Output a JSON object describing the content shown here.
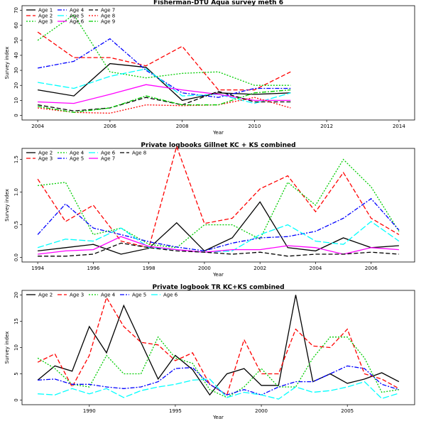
{
  "figure": {
    "background": "#ffffff"
  },
  "chart_data": [
    {
      "type": "line",
      "title": "Fisherman-DTU Aqua survey meth 6",
      "xlabel": "Year",
      "ylabel": "Survey index",
      "xlim": [
        2004,
        2014
      ],
      "ylim": [
        0,
        70
      ],
      "xticks": [
        2004,
        2006,
        2008,
        2010,
        2012,
        2014
      ],
      "yticks": [
        0,
        10,
        20,
        30,
        40,
        50,
        60,
        70
      ],
      "legend_columns": 3,
      "legend_placement": "top-left",
      "x": [
        2004,
        2005,
        2006,
        2007,
        2008,
        2009,
        2010,
        2011
      ],
      "series": [
        {
          "name": "Age 1",
          "color": "#000000",
          "dash": "solid",
          "values": [
            17,
            13,
            34.5,
            32,
            10,
            15,
            14,
            15
          ]
        },
        {
          "name": "Age 2",
          "color": "#ff0000",
          "dash": "dashed",
          "values": [
            55.5,
            38.5,
            38.5,
            33,
            46,
            17,
            17,
            29
          ]
        },
        {
          "name": "Age 3",
          "color": "#00cd00",
          "dash": "dotted",
          "values": [
            50,
            67,
            29,
            25,
            28,
            29,
            20,
            20
          ]
        },
        {
          "name": "Age 4",
          "color": "#0000ff",
          "dash": "dashdot",
          "values": [
            31.5,
            36,
            51,
            30,
            15,
            12,
            18,
            18
          ]
        },
        {
          "name": "Age 5",
          "color": "#00ffff",
          "dash": "longdash",
          "values": [
            22,
            18,
            26,
            31,
            13,
            14,
            8,
            15
          ]
        },
        {
          "name": "Age 6",
          "color": "#ff00ff",
          "dash": "solid",
          "values": [
            9,
            8,
            14,
            20.5,
            17,
            14,
            10,
            10
          ]
        },
        {
          "name": "Age 7",
          "color": "#000000",
          "dash": "dashed",
          "values": [
            7,
            3,
            5,
            12,
            7,
            16,
            9,
            9
          ]
        },
        {
          "name": "Age 8",
          "color": "#ff0000",
          "dash": "dotted",
          "values": [
            5,
            2,
            1.5,
            7,
            6.5,
            7,
            12,
            5
          ]
        },
        {
          "name": "Age 9",
          "color": "#00cd00",
          "dash": "dashdot",
          "values": [
            6,
            2,
            5,
            13,
            7,
            7,
            15,
            17
          ]
        }
      ]
    },
    {
      "type": "line",
      "title": "Private logbooks Gillnet KC + KS combined",
      "xlabel": "Year",
      "ylabel": "Survey index",
      "xlim": [
        1994,
        2007
      ],
      "ylim": [
        0,
        1.6
      ],
      "xticks": [
        1994,
        1996,
        1998,
        2000,
        2002,
        2004,
        2006
      ],
      "yticks": [
        0,
        0.5,
        1,
        1.5
      ],
      "ytick_labels": [
        "0.0",
        "0.5",
        "1.0",
        "1.5"
      ],
      "legend_columns": 4,
      "legend_placement": "top-left",
      "x": [
        1994,
        1995,
        1996,
        1997,
        1998,
        1999,
        2000,
        2001,
        2002,
        2003,
        2004,
        2005,
        2006,
        2007
      ],
      "series": [
        {
          "name": "Age 2",
          "color": "#000000",
          "dash": "solid",
          "values": [
            0.1,
            0.15,
            0.2,
            0.05,
            0.14,
            0.53,
            0.1,
            0.3,
            0.85,
            0.15,
            0.1,
            0.3,
            0.15,
            0.18
          ]
        },
        {
          "name": "Age 3",
          "color": "#ff0000",
          "dash": "dashed",
          "values": [
            1.2,
            0.55,
            0.8,
            0.25,
            0.15,
            1.7,
            0.52,
            0.6,
            1.05,
            1.25,
            0.7,
            1.3,
            0.6,
            0.35
          ]
        },
        {
          "name": "Age 4",
          "color": "#00cd00",
          "dash": "dotted",
          "values": [
            1.1,
            1.15,
            0.35,
            0.45,
            0.2,
            0.15,
            0.5,
            0.5,
            0.28,
            1.15,
            0.8,
            1.5,
            1.08,
            0.4
          ]
        },
        {
          "name": "Age 5",
          "color": "#0000ff",
          "dash": "dashdot",
          "values": [
            0.35,
            0.82,
            0.45,
            0.35,
            0.24,
            0.16,
            0.1,
            0.22,
            0.3,
            0.32,
            0.4,
            0.6,
            0.9,
            0.42
          ]
        },
        {
          "name": "Age 6",
          "color": "#00ffff",
          "dash": "longdash",
          "values": [
            0.15,
            0.28,
            0.25,
            0.45,
            0.15,
            0.12,
            0.08,
            0.1,
            0.35,
            0.5,
            0.25,
            0.2,
            0.55,
            0.25
          ]
        },
        {
          "name": "Age 7",
          "color": "#ff00ff",
          "dash": "solid",
          "values": [
            0.05,
            0.1,
            0.12,
            0.32,
            0.17,
            0.12,
            0.08,
            0.12,
            0.12,
            0.18,
            0.15,
            0.05,
            0.15,
            0.12
          ]
        },
        {
          "name": "Age 8",
          "color": "#000000",
          "dash": "dashed",
          "values": [
            0.02,
            0.02,
            0.05,
            0.22,
            0.15,
            0.1,
            0.08,
            0.05,
            0.08,
            0.02,
            0.05,
            0.05,
            0.08,
            0.05
          ]
        }
      ]
    },
    {
      "type": "line",
      "title": "Private logbook TR KC+KS combined",
      "xlabel": "Year",
      "ylabel": "Survey index",
      "xlim": [
        1987,
        2008
      ],
      "ylim": [
        0,
        20
      ],
      "xticks": [
        1990,
        1995,
        2000,
        2005
      ],
      "yticks": [
        0,
        5,
        10,
        15,
        20
      ],
      "legend_columns": 5,
      "legend_placement": "top-left",
      "x": [
        1987,
        1988,
        1989,
        1990,
        1991,
        1992,
        1993,
        1994,
        1995,
        1996,
        1997,
        1998,
        1999,
        2000,
        2001,
        2002,
        2003,
        2004,
        2005,
        2006,
        2007,
        2008
      ],
      "series": [
        {
          "name": "Age 2",
          "color": "#000000",
          "dash": "solid",
          "values": [
            3.8,
            6.5,
            5.5,
            14,
            9,
            18,
            11,
            4,
            8.5,
            5.8,
            1,
            5,
            6,
            2.8,
            2.8,
            20,
            3.5,
            5,
            3.2,
            4,
            5.2,
            3.5
          ]
        },
        {
          "name": "Age 3",
          "color": "#ff0000",
          "dash": "dashed",
          "values": [
            7.2,
            8.8,
            2.5,
            8.5,
            19.5,
            14,
            11,
            10.5,
            7.5,
            9,
            3,
            1,
            11.5,
            5,
            5,
            13.5,
            10.3,
            10,
            13.5,
            5,
            4,
            2.2
          ]
        },
        {
          "name": "Age 4",
          "color": "#00cd00",
          "dash": "dotted",
          "values": [
            8,
            6,
            3,
            2.5,
            8.5,
            5,
            5,
            12,
            8,
            7,
            2,
            0.5,
            2.5,
            6,
            2.5,
            2.5,
            8,
            12,
            12,
            8,
            1.5,
            2
          ]
        },
        {
          "name": "Age 5",
          "color": "#0000ff",
          "dash": "dashdot",
          "values": [
            3.8,
            4,
            3,
            3,
            2.5,
            2.2,
            2.5,
            3.5,
            6,
            6.2,
            3,
            1,
            2,
            1,
            2.5,
            3.5,
            3.5,
            5,
            6.5,
            6,
            3,
            2
          ]
        },
        {
          "name": "Age 6",
          "color": "#00ffff",
          "dash": "longdash",
          "values": [
            1.2,
            1,
            2.2,
            1.2,
            2.2,
            0.5,
            1.8,
            2.5,
            3,
            3.8,
            4,
            0.5,
            1.5,
            1,
            0.2,
            2.5,
            1.5,
            1.8,
            2.5,
            3.5,
            0.3,
            1.3
          ]
        }
      ]
    }
  ]
}
